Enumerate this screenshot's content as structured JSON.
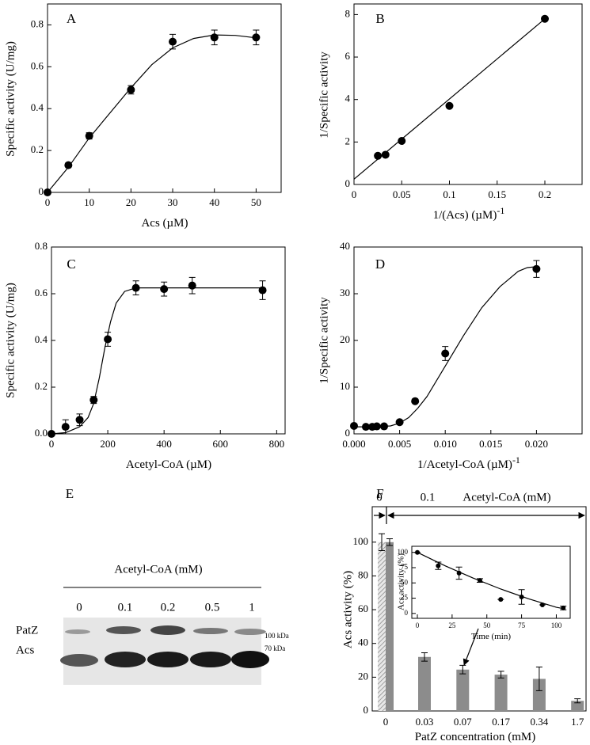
{
  "chart_data": [
    {
      "type": "scatter",
      "label": "A",
      "xlabel": "Acs (µM)",
      "ylabel": "Specific activity (U/mg)",
      "x": [
        0,
        5,
        10,
        20,
        30,
        40,
        50
      ],
      "values": [
        0,
        0.13,
        0.27,
        0.49,
        0.72,
        0.74,
        0.74
      ],
      "errors": [
        0,
        0.01,
        0.015,
        0.02,
        0.035,
        0.035,
        0.035
      ],
      "fit": {
        "x": [
          0,
          5,
          10,
          15,
          20,
          25,
          30,
          35,
          40,
          45,
          50
        ],
        "values": [
          0,
          0.12,
          0.26,
          0.38,
          0.5,
          0.61,
          0.69,
          0.735,
          0.752,
          0.75,
          0.738
        ]
      },
      "xlim": [
        0,
        56
      ],
      "ylim": [
        0,
        0.9
      ],
      "xticks": [
        0,
        10,
        20,
        30,
        40,
        50
      ],
      "yticks": [
        0,
        0.2,
        0.4,
        0.6,
        0.8
      ],
      "color": "#000000"
    },
    {
      "type": "scatter",
      "label": "B",
      "xlabel": "1/(Acs) (µM)",
      "xlabel_sup": "-1",
      "ylabel": "1/Specific activity",
      "x": [
        0.025,
        0.033,
        0.05,
        0.1,
        0.2
      ],
      "values": [
        1.35,
        1.4,
        2.05,
        3.7,
        7.8
      ],
      "fit": {
        "x": [
          0,
          0.2
        ],
        "values": [
          0.25,
          7.8
        ]
      },
      "xlim": [
        0,
        0.239
      ],
      "ylim": [
        0,
        8.5
      ],
      "xticks": [
        0,
        0.05,
        0.1,
        0.15,
        0.2
      ],
      "yticks": [
        0,
        2,
        4,
        6,
        8
      ],
      "color": "#000000"
    },
    {
      "type": "scatter",
      "label": "C",
      "xlabel": "Acetyl-CoA (µM)",
      "ylabel": "Specific activity (U/mg)",
      "x": [
        0,
        50,
        100,
        150,
        200,
        300,
        400,
        500,
        750
      ],
      "values": [
        0,
        0.03,
        0.06,
        0.145,
        0.405,
        0.625,
        0.62,
        0.635,
        0.615
      ],
      "errors": [
        0,
        0.03,
        0.025,
        0.015,
        0.03,
        0.03,
        0.03,
        0.035,
        0.04
      ],
      "fit": {
        "x": [
          0,
          50,
          100,
          130,
          150,
          170,
          190,
          210,
          230,
          260,
          300,
          400,
          500,
          600,
          750
        ],
        "values": [
          0,
          0.005,
          0.03,
          0.07,
          0.13,
          0.24,
          0.37,
          0.48,
          0.56,
          0.61,
          0.625,
          0.625,
          0.625,
          0.625,
          0.625
        ]
      },
      "xlim": [
        0,
        830
      ],
      "ylim": [
        0,
        0.8
      ],
      "xticks": [
        0,
        200,
        400,
        600,
        800
      ],
      "yticks": [
        {
          "value": 0,
          "label": "0.0"
        },
        0.2,
        0.4,
        0.6,
        0.8
      ],
      "color": "#000000"
    },
    {
      "type": "scatter",
      "label": "D",
      "xlabel": "1/Acetyl-CoA (µM)",
      "xlabel_sup": "-1",
      "ylabel": "1/Specific activity",
      "x": [
        0,
        0.0013,
        0.002,
        0.0025,
        0.0033,
        0.005,
        0.0067,
        0.01,
        0.02
      ],
      "values": [
        1.7,
        1.5,
        1.5,
        1.6,
        1.6,
        2.5,
        7,
        17.2,
        35.3
      ],
      "errors": [
        0,
        0,
        0,
        0,
        0,
        0,
        0,
        1.5,
        1.8
      ],
      "fit": {
        "x": [
          0,
          0.002,
          0.004,
          0.005,
          0.006,
          0.007,
          0.008,
          0.01,
          0.012,
          0.014,
          0.016,
          0.018,
          0.019,
          0.02
        ],
        "values": [
          1.5,
          1.5,
          1.7,
          2.3,
          3.5,
          5.5,
          8,
          14.5,
          21,
          27,
          31.5,
          34.8,
          35.6,
          35.8
        ]
      },
      "xlim": [
        0,
        0.025
      ],
      "ylim": [
        0,
        40
      ],
      "xticks": [
        {
          "value": 0,
          "label": "0.000"
        },
        {
          "value": 0.005,
          "label": "0.005"
        },
        {
          "value": 0.01,
          "label": "0.010"
        },
        {
          "value": 0.015,
          "label": "0.015"
        },
        {
          "value": 0.02,
          "label": "0.020"
        }
      ],
      "yticks": [
        0,
        10,
        20,
        30,
        40
      ],
      "color": "#000000"
    },
    {
      "type": "gel",
      "label": "E",
      "title": "Acetyl-CoA (mM)",
      "lanes": [
        "0",
        "0.1",
        "0.2",
        "0.5",
        "1"
      ],
      "bands": [
        "PatZ",
        "Acs"
      ],
      "markers": [
        "100 kDa",
        "70 kDa"
      ]
    },
    {
      "type": "bar",
      "label": "F",
      "xlabel": "PatZ concentration (mM)",
      "ylabel": "Acs activity (%)",
      "annotation": "Acetyl-CoA (mM)",
      "categories": [
        "0",
        "0.03",
        "0.07",
        "0.17",
        "0.34",
        "1.7"
      ],
      "series": [
        {
          "name": "0",
          "color": "#a0a0a0",
          "pattern": "hatched",
          "values": [
            100,
            null,
            null,
            null,
            null,
            null
          ],
          "errors": [
            5,
            null,
            null,
            null,
            null,
            null
          ]
        },
        {
          "name": "0.1",
          "color": "#8c8c8c",
          "values": [
            100,
            32,
            24.5,
            21.5,
            19,
            6
          ],
          "errors": [
            2,
            2.5,
            2.5,
            2,
            7,
            1.2
          ]
        }
      ],
      "ylim": [
        0,
        121
      ],
      "yticks": [
        0,
        20,
        40,
        60,
        80,
        100
      ],
      "inset": {
        "type": "scatter",
        "xlabel": "Time (min)",
        "ylabel": "Acs activity (%)",
        "x": [
          0,
          15,
          30,
          45,
          60,
          75,
          90,
          105
        ],
        "values": [
          100,
          78,
          66,
          54,
          23,
          27,
          14,
          9
        ],
        "errors": [
          0,
          6,
          10,
          3,
          0,
          12,
          0,
          3
        ],
        "fit": {
          "x": [
            0,
            20,
            40,
            60,
            80,
            100,
            105
          ],
          "values": [
            100,
            78,
            58,
            40,
            24,
            10,
            8
          ]
        },
        "xlim": [
          -4,
          110
        ],
        "ylim": [
          -8,
          110
        ],
        "xticks": [
          0,
          25,
          50,
          75,
          100
        ],
        "yticks": [
          0,
          25,
          50,
          75,
          100
        ],
        "color": "#000000"
      }
    }
  ]
}
